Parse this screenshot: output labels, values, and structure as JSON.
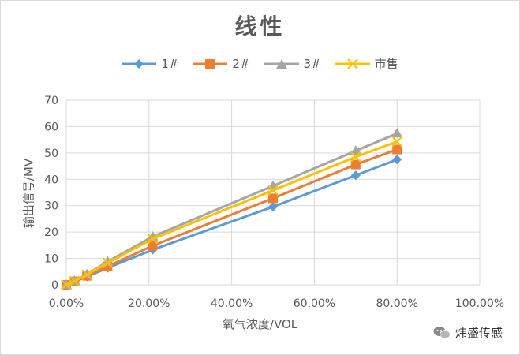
{
  "chart_data": {
    "type": "line",
    "title": "线性",
    "xlabel": "氧气浓度/VOL",
    "ylabel": "输出信号/MV",
    "xlim": [
      0,
      1.0
    ],
    "ylim": [
      0,
      70
    ],
    "x_ticks": [
      "0.00%",
      "20.00%",
      "40.00%",
      "60.00%",
      "80.00%",
      "100.00%"
    ],
    "x_tick_values": [
      0,
      0.2,
      0.4,
      0.6,
      0.8,
      1.0
    ],
    "y_ticks": [
      "0",
      "10",
      "20",
      "30",
      "40",
      "50",
      "60",
      "70"
    ],
    "y_tick_values": [
      0,
      10,
      20,
      30,
      40,
      50,
      60,
      70
    ],
    "grid": true,
    "legend_position": "top",
    "x": [
      0,
      0.02,
      0.05,
      0.1,
      0.209,
      0.5,
      0.7,
      0.8
    ],
    "series": [
      {
        "name": "1#",
        "color": "#5b9bd5",
        "marker": "diamond",
        "values": [
          0,
          1.2,
          3.1,
          6.4,
          13.3,
          29.6,
          41.5,
          47.5
        ]
      },
      {
        "name": "2#",
        "color": "#ed7d31",
        "marker": "square",
        "values": [
          0,
          1.3,
          3.4,
          7.0,
          14.8,
          32.8,
          45.6,
          51.3
        ]
      },
      {
        "name": "3#",
        "color": "#a5a5a5",
        "marker": "triangle",
        "values": [
          0,
          1.5,
          4.0,
          8.8,
          18.3,
          37.5,
          50.8,
          57.4
        ]
      },
      {
        "name": "市售",
        "color": "#ffc000",
        "marker": "x",
        "values": [
          0,
          1.4,
          3.8,
          8.3,
          17.4,
          35.8,
          48.5,
          54.3
        ]
      }
    ]
  },
  "watermark": {
    "text": "炜盛传感",
    "icon": "wechat-icon"
  }
}
